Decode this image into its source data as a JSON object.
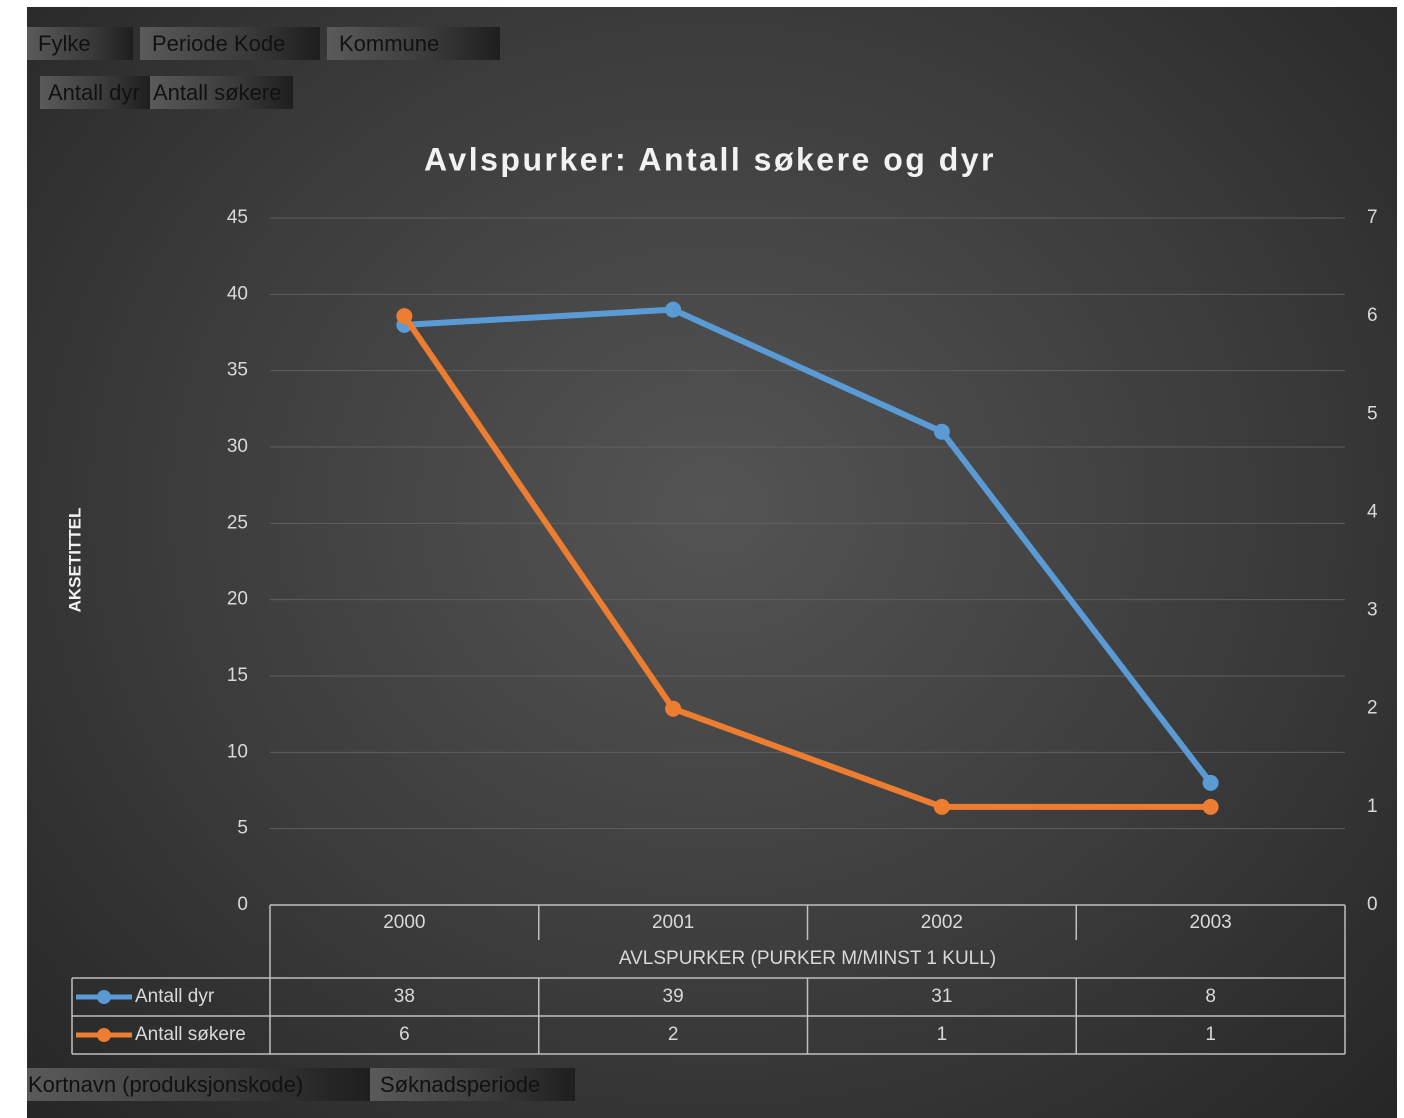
{
  "filter_buttons": [
    "Fylke",
    "Periode Kode",
    "Kommune"
  ],
  "value_buttons": [
    "Antall dyr",
    "Antall søkere"
  ],
  "axis_buttons": [
    "Kortnavn (produksjonskode)",
    "Søknadsperiode"
  ],
  "chart_data": {
    "type": "line",
    "title": "Avlspurker: Antall søkere og dyr",
    "y_axis_title": "AKSETITTEL",
    "x_axis_title": "AVLSPURKER (PURKER M/MINST 1 KULL)",
    "categories": [
      "2000",
      "2001",
      "2002",
      "2003"
    ],
    "series": [
      {
        "name": "Antall dyr",
        "color": "#5b9bd5",
        "values": [
          38,
          39,
          31,
          8
        ]
      },
      {
        "name": "Antall søkere",
        "color": "#ed7d31",
        "axis": "y2",
        "values": [
          6,
          2,
          1,
          1
        ]
      }
    ],
    "ylim": [
      0,
      45
    ],
    "yticks": [
      0,
      5,
      10,
      15,
      20,
      25,
      30,
      35,
      40,
      45
    ],
    "y2lim": [
      0,
      7
    ],
    "y2ticks": [
      0,
      1,
      2,
      3,
      4,
      5,
      6,
      7
    ],
    "grid": true
  }
}
